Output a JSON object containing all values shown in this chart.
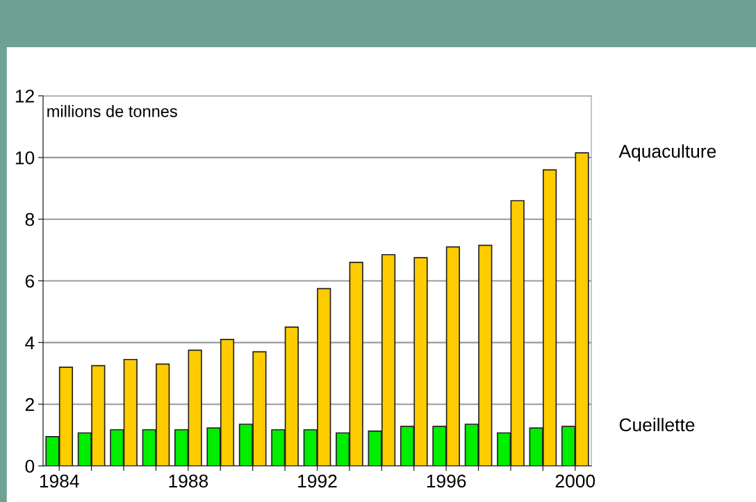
{
  "chart_data": {
    "type": "bar",
    "ylabel": "millions de tonnes",
    "categories": [
      "1984",
      null,
      null,
      null,
      "1988",
      null,
      null,
      null,
      "1992",
      null,
      null,
      null,
      "1996",
      null,
      null,
      null,
      "2000"
    ],
    "series": [
      {
        "name": "Cueillette",
        "color": "#00ee00",
        "values": [
          0.95,
          1.07,
          1.17,
          1.17,
          1.17,
          1.23,
          1.35,
          1.17,
          1.17,
          1.07,
          1.13,
          1.28,
          1.28,
          1.35,
          1.07,
          1.23,
          1.28
        ]
      },
      {
        "name": "Aquaculture",
        "color": "#ffcc00",
        "values": [
          3.2,
          3.25,
          3.45,
          3.3,
          3.75,
          4.1,
          3.7,
          4.5,
          5.75,
          6.6,
          6.85,
          6.75,
          7.1,
          7.15,
          8.6,
          9.6,
          10.15
        ]
      }
    ],
    "ylim": [
      0,
      12
    ],
    "yticks": [
      0,
      2,
      4,
      6,
      8,
      10,
      12
    ],
    "grid": "y",
    "legend": false
  }
}
